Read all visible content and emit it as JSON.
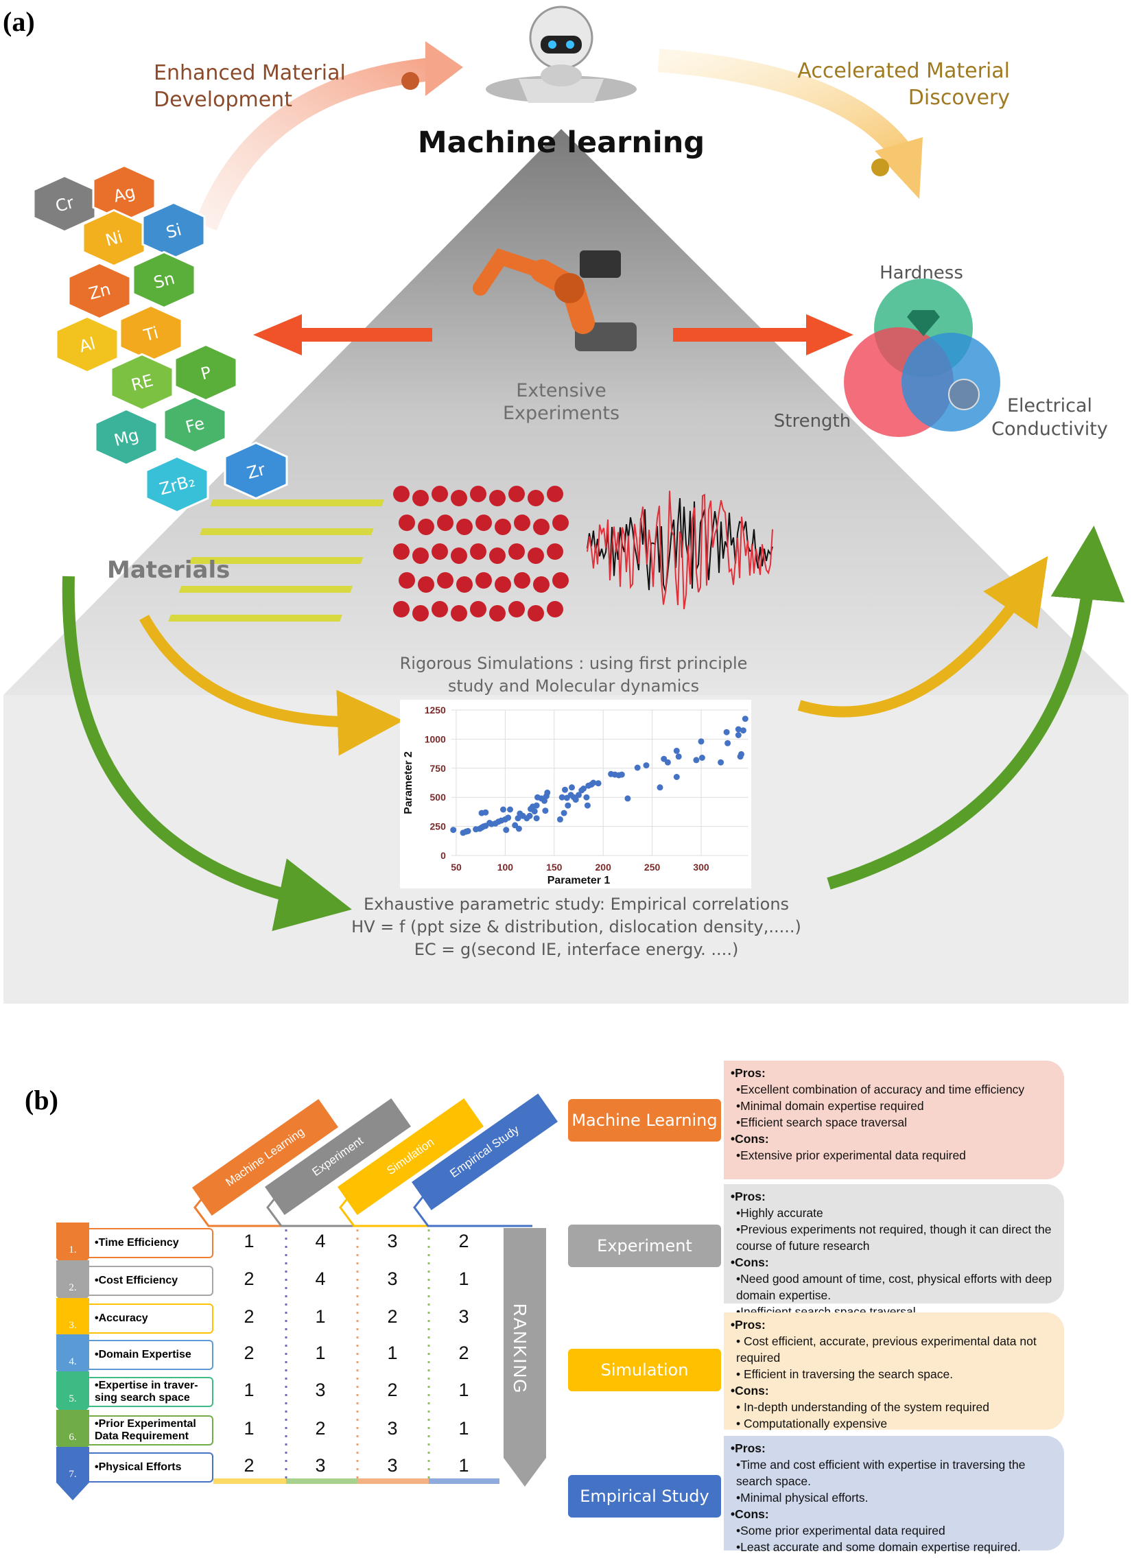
{
  "panel_a": {
    "label": "(a)",
    "title": "Machine learning",
    "enhanced": [
      "Enhanced Material",
      "Development"
    ],
    "accelerated": [
      "Accelerated Material",
      "Discovery"
    ],
    "materials_label": "Materials",
    "materials": [
      {
        "symbol": "Cr",
        "color": "#7f7f7f"
      },
      {
        "symbol": "Ag",
        "color": "#e8702a"
      },
      {
        "symbol": "Ni",
        "color": "#f2b01e"
      },
      {
        "symbol": "Si",
        "color": "#3e8ed0"
      },
      {
        "symbol": "Zn",
        "color": "#e8702a"
      },
      {
        "symbol": "Sn",
        "color": "#5aae3a"
      },
      {
        "symbol": "Al",
        "color": "#f2c31e"
      },
      {
        "symbol": "Ti",
        "color": "#f2a91e"
      },
      {
        "symbol": "RE",
        "color": "#7cc142"
      },
      {
        "symbol": "P",
        "color": "#5aae3a"
      },
      {
        "symbol": "Mg",
        "color": "#3bb39a"
      },
      {
        "symbol": "Fe",
        "color": "#49b56a"
      },
      {
        "symbol": "ZrB₂",
        "color": "#38c0d8"
      },
      {
        "symbol": "Zr",
        "color": "#3a8fd8"
      }
    ],
    "experiments_label": [
      "Extensive",
      "Experiments"
    ],
    "properties": {
      "hardness": "Hardness",
      "strength": "Strength",
      "conductivity": [
        "Electrical",
        "Conductivity"
      ]
    },
    "simulations_label": [
      "Rigorous Simulations : using first principle",
      "study and Molecular dynamics"
    ],
    "empirical_label": [
      "Exhaustive parametric study: Empirical correlations",
      "HV = f (ppt size & distribution, dislocation density,.....)",
      "EC = g(second IE, interface energy. ....)"
    ],
    "colors": {
      "enhanced": "#8b4a2a",
      "accelerated": "#a07a20",
      "red_arrow": "#f0532a",
      "yellow_arrow": "#e8b31a",
      "green_arrow": "#5a9e2a"
    }
  },
  "chart_data": {
    "type": "scatter",
    "xlabel": "Parameter 1",
    "ylabel": "Parameter 2",
    "xlim": [
      45,
      348
    ],
    "ylim": [
      0,
      1250
    ],
    "xticks": [
      50,
      100,
      150,
      200,
      250,
      300
    ],
    "yticks": [
      0,
      250,
      500,
      750,
      1000,
      1250
    ],
    "grid": true,
    "color": "#4472c4",
    "points": [
      [
        47,
        220
      ],
      [
        57,
        195
      ],
      [
        60,
        205
      ],
      [
        62,
        210
      ],
      [
        70,
        225
      ],
      [
        74,
        230
      ],
      [
        76,
        240
      ],
      [
        78,
        250
      ],
      [
        80,
        255
      ],
      [
        76,
        365
      ],
      [
        80,
        370
      ],
      [
        84,
        280
      ],
      [
        86,
        270
      ],
      [
        90,
        275
      ],
      [
        93,
        290
      ],
      [
        96,
        300
      ],
      [
        100,
        310
      ],
      [
        103,
        325
      ],
      [
        98,
        395
      ],
      [
        105,
        395
      ],
      [
        101,
        220
      ],
      [
        110,
        260
      ],
      [
        114,
        230
      ],
      [
        113,
        320
      ],
      [
        115,
        360
      ],
      [
        118,
        340
      ],
      [
        122,
        320
      ],
      [
        125,
        340
      ],
      [
        126,
        400
      ],
      [
        128,
        420
      ],
      [
        130,
        380
      ],
      [
        132,
        430
      ],
      [
        132,
        320
      ],
      [
        133,
        500
      ],
      [
        137,
        490
      ],
      [
        140,
        470
      ],
      [
        141,
        385
      ],
      [
        143,
        540
      ],
      [
        142,
        510
      ],
      [
        156,
        310
      ],
      [
        158,
        500
      ],
      [
        160,
        365
      ],
      [
        161,
        565
      ],
      [
        163,
        495
      ],
      [
        164,
        430
      ],
      [
        167,
        520
      ],
      [
        168,
        585
      ],
      [
        170,
        500
      ],
      [
        172,
        480
      ],
      [
        175,
        520
      ],
      [
        178,
        560
      ],
      [
        180,
        575
      ],
      [
        183,
        500
      ],
      [
        184,
        430
      ],
      [
        185,
        600
      ],
      [
        188,
        610
      ],
      [
        190,
        625
      ],
      [
        195,
        620
      ],
      [
        208,
        700
      ],
      [
        212,
        695
      ],
      [
        216,
        690
      ],
      [
        219,
        695
      ],
      [
        225,
        490
      ],
      [
        235,
        755
      ],
      [
        244,
        775
      ],
      [
        258,
        585
      ],
      [
        262,
        830
      ],
      [
        266,
        800
      ],
      [
        275,
        900
      ],
      [
        275,
        675
      ],
      [
        277,
        850
      ],
      [
        295,
        820
      ],
      [
        300,
        980
      ],
      [
        301,
        840
      ],
      [
        320,
        800
      ],
      [
        326,
        1060
      ],
      [
        327,
        965
      ],
      [
        338,
        1085
      ],
      [
        338,
        1035
      ],
      [
        340,
        850
      ],
      [
        341,
        870
      ],
      [
        343,
        1075
      ],
      [
        345,
        1175
      ]
    ]
  },
  "panel_b": {
    "label": "(b)",
    "columns": [
      {
        "label": "Machine Learning",
        "color": "#ed7d31"
      },
      {
        "label": "Experiment",
        "color": "#8c8c8c"
      },
      {
        "label": "Simulation",
        "color": "#ffc000"
      },
      {
        "label": "Empirical Study",
        "color": "#4472c4"
      }
    ],
    "ranking_label": "RANKING",
    "rows": [
      {
        "num": "1.",
        "label": "•Time Efficiency",
        "color": "#ed7d31",
        "values": [
          "1",
          "4",
          "3",
          "2"
        ]
      },
      {
        "num": "2.",
        "label": "•Cost Efficiency",
        "color": "#a5a5a5",
        "values": [
          "2",
          "4",
          "3",
          "1"
        ]
      },
      {
        "num": "3.",
        "label": "•Accuracy",
        "color": "#ffc000",
        "values": [
          "2",
          "1",
          "2",
          "3"
        ]
      },
      {
        "num": "4.",
        "label": "•Domain Expertise",
        "color": "#5b9bd5",
        "values": [
          "2",
          "1",
          "1",
          "2"
        ]
      },
      {
        "num": "5.",
        "label": "•Expertise in traver-sing search space",
        "color": "#3dbb85",
        "values": [
          "1",
          "3",
          "2",
          "1"
        ]
      },
      {
        "num": "6.",
        "label": "•Prior Experimental Data Requirement",
        "color": "#70ad47",
        "values": [
          "1",
          "2",
          "3",
          "1"
        ]
      },
      {
        "num": "7.",
        "label": "•Physical Efforts",
        "color": "#4472c4",
        "values": [
          "2",
          "3",
          "3",
          "1"
        ]
      }
    ],
    "methods": [
      {
        "label": "Machine Learning",
        "color": "#ed7d31",
        "box_color": "#f8d5cc",
        "pros": [
          "•Excellent combination of accuracy and time efficiency",
          "•Minimal domain expertise required",
          "•Efficient search space traversal"
        ],
        "cons": [
          "•Extensive prior experimental data required"
        ]
      },
      {
        "label": "Experiment",
        "color": "#a5a5a5",
        "box_color": "#e3e3e3",
        "pros": [
          "•Highly accurate",
          "•Previous experiments not required, though it can direct the course of future research"
        ],
        "cons": [
          "•Need good amount of time, cost, physical efforts with deep domain expertise.",
          "•Inefficient search space traversal"
        ]
      },
      {
        "label": "Simulation",
        "color": "#ffc000",
        "box_color": "#fde9cc",
        "pros": [
          "• Cost efficient, accurate, previous experimental data not required",
          "• Efficient in traversing the search space."
        ],
        "cons": [
          "• In-depth understanding of the system required",
          "• Computationally expensive"
        ]
      },
      {
        "label": "Empirical Study",
        "color": "#4472c4",
        "box_color": "#d0d8ec",
        "pros": [
          "•Time and cost efficient with expertise in traversing the search space.",
          "•Minimal physical efforts."
        ],
        "cons": [
          "•Some prior experimental data required",
          "•Least accurate and some domain expertise required."
        ]
      }
    ],
    "pros_label": "•Pros:",
    "cons_label": "•Cons:"
  }
}
